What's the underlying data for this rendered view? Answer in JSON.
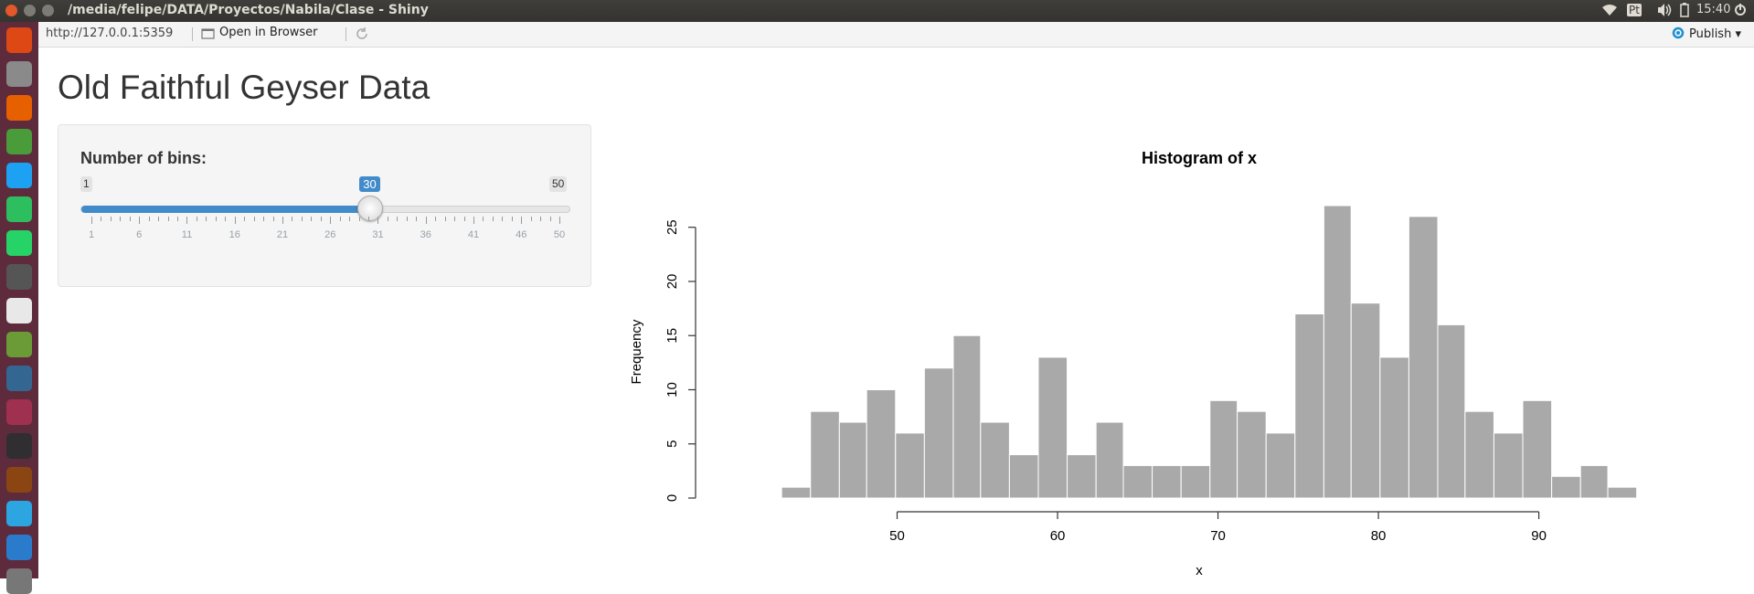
{
  "window": {
    "title": "/media/felipe/DATA/Proyectos/Nabila/Clase - Shiny",
    "clock": "15:40",
    "input_lang": "Pt"
  },
  "launcher": {
    "icons": [
      "ubuntu-icon",
      "files-icon",
      "firefox-icon",
      "chrome-icon",
      "twitter-icon",
      "evernote-icon",
      "whatsapp-icon",
      "text-editor-icon",
      "libreoffice-writer-icon",
      "qgis-icon",
      "postgresql-icon",
      "pen-app-icon",
      "obs-icon",
      "library-icon",
      "telegram-icon",
      "vscode-icon",
      "screenshot-icon"
    ]
  },
  "viewer": {
    "url": "http://127.0.0.1:5359",
    "open_in_browser": "Open in Browser",
    "publish": "Publish"
  },
  "app": {
    "title": "Old Faithful Geyser Data",
    "slider": {
      "label": "Number of bins:",
      "min": 1,
      "max": 50,
      "value": 30,
      "min_label": "1",
      "max_label": "50",
      "value_label": "30",
      "ticks": [
        "1",
        "6",
        "11",
        "16",
        "21",
        "26",
        "31",
        "36",
        "41",
        "46",
        "50"
      ]
    }
  },
  "chart_data": {
    "type": "bar",
    "title": "Histogram of x",
    "xlabel": "x",
    "ylabel": "Frequency",
    "bin_edges": [
      42.8,
      44.6,
      46.4,
      48.1,
      49.9,
      51.7,
      53.5,
      55.2,
      57.0,
      58.8,
      60.6,
      62.4,
      64.1,
      65.9,
      67.7,
      69.5,
      71.2,
      73.0,
      74.8,
      76.6,
      78.3,
      80.1,
      81.9,
      83.7,
      85.4,
      87.2,
      89.0,
      90.8,
      92.6,
      94.3,
      96.1
    ],
    "values": [
      1,
      8,
      7,
      10,
      6,
      12,
      15,
      7,
      4,
      13,
      4,
      7,
      3,
      3,
      3,
      9,
      8,
      6,
      17,
      27,
      18,
      13,
      26,
      16,
      8,
      6,
      9,
      2,
      3,
      1
    ],
    "xlim": [
      40,
      98
    ],
    "ylim": [
      0,
      27
    ],
    "xticks": [
      "50",
      "60",
      "70",
      "80",
      "90"
    ],
    "yticks": [
      "0",
      "5",
      "10",
      "15",
      "20",
      "25"
    ],
    "bar_color": "#a9a9a9",
    "grid": false,
    "legend": "none"
  }
}
